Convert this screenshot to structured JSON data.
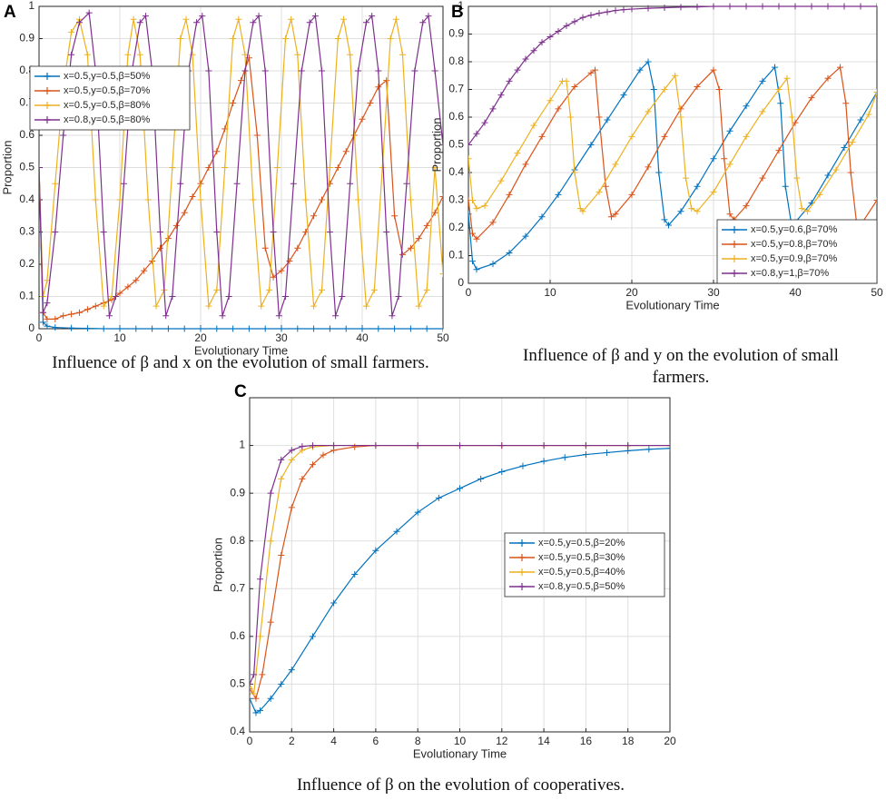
{
  "chart_data": [
    {
      "type": "line",
      "label": "A",
      "xlabel": "Evolutionary Time",
      "ylabel": "Proportion",
      "caption": "Influence of β and x on the evolution of small farmers.",
      "xlim": [
        0,
        50
      ],
      "xticks": [
        0,
        10,
        20,
        30,
        40,
        50
      ],
      "ylim": [
        0,
        1
      ],
      "yticks": [
        0,
        0.1,
        0.2,
        0.3,
        0.4,
        0.5,
        0.6,
        0.7,
        0.8,
        0.9,
        1
      ],
      "grid": true,
      "legend": "upper left",
      "series": [
        {
          "name": "x=0.5,y=0.5,β=50%",
          "color": "#0072BD",
          "x": [
            0,
            0.5,
            1,
            2,
            4,
            6,
            8,
            10,
            12,
            14,
            16,
            18,
            20,
            22,
            24,
            26,
            28,
            30,
            32,
            34,
            36,
            38,
            40,
            42,
            44,
            46,
            48,
            50
          ],
          "values": [
            0.5,
            0.02,
            0.008,
            0.004,
            0.002,
            0.001,
            0,
            0,
            0,
            0,
            0,
            0,
            0,
            0,
            0,
            0,
            0,
            0,
            0,
            0,
            0,
            0,
            0,
            0,
            0,
            0,
            0,
            0
          ]
        },
        {
          "name": "x=0.5,y=0.5,β=70%",
          "color": "#D95319",
          "x": [
            0,
            0.5,
            1,
            2,
            3,
            4,
            5,
            6,
            7,
            8,
            9,
            10,
            11,
            12,
            13,
            14,
            15,
            16,
            17,
            18,
            19,
            20,
            21,
            22,
            23,
            24,
            25,
            26,
            27,
            28,
            29,
            30,
            31,
            32,
            33,
            34,
            35,
            36,
            37,
            38,
            39,
            40,
            41,
            42,
            43,
            44,
            45,
            46,
            47,
            48,
            49,
            50
          ],
          "values": [
            0.5,
            0.05,
            0.03,
            0.03,
            0.04,
            0.045,
            0.05,
            0.06,
            0.07,
            0.08,
            0.09,
            0.11,
            0.13,
            0.15,
            0.18,
            0.21,
            0.25,
            0.28,
            0.32,
            0.36,
            0.41,
            0.45,
            0.5,
            0.55,
            0.62,
            0.7,
            0.77,
            0.84,
            0.6,
            0.25,
            0.16,
            0.18,
            0.21,
            0.25,
            0.3,
            0.35,
            0.4,
            0.45,
            0.5,
            0.55,
            0.6,
            0.65,
            0.7,
            0.75,
            0.77,
            0.35,
            0.23,
            0.25,
            0.28,
            0.32,
            0.36,
            0.41
          ]
        },
        {
          "name": "x=0.5,y=0.5,β=80%",
          "color": "#EDB120",
          "x": [
            0,
            0.5,
            1,
            2,
            3,
            4,
            5,
            6,
            7,
            8,
            9,
            10,
            11,
            11.7,
            12.5,
            13.5,
            14.5,
            15.5,
            16.5,
            17.5,
            18.2,
            19,
            20,
            21,
            22,
            23,
            24,
            24.7,
            25.5,
            26.5,
            27.5,
            28.5,
            29.5,
            30.5,
            31.2,
            32,
            33,
            34,
            35,
            36,
            37,
            37.7,
            38.5,
            39.5,
            40.5,
            41.5,
            42.5,
            43.5,
            44.2,
            45,
            46,
            47,
            48,
            49,
            50
          ],
          "values": [
            0.5,
            0.1,
            0.15,
            0.45,
            0.75,
            0.92,
            0.96,
            0.85,
            0.4,
            0.07,
            0.1,
            0.4,
            0.85,
            0.96,
            0.85,
            0.4,
            0.07,
            0.12,
            0.5,
            0.9,
            0.96,
            0.85,
            0.4,
            0.07,
            0.12,
            0.5,
            0.9,
            0.96,
            0.85,
            0.4,
            0.07,
            0.12,
            0.5,
            0.9,
            0.96,
            0.85,
            0.4,
            0.07,
            0.12,
            0.5,
            0.9,
            0.96,
            0.85,
            0.4,
            0.07,
            0.12,
            0.5,
            0.9,
            0.96,
            0.85,
            0.4,
            0.07,
            0.12,
            0.5,
            0.17
          ]
        },
        {
          "name": "x=0.8,y=0.5,β=80%",
          "color": "#7E2F8E",
          "x": [
            0,
            0.5,
            1,
            2,
            3,
            4,
            5,
            6.2,
            7,
            8,
            8.7,
            9.5,
            10.5,
            11.5,
            12.5,
            13.2,
            14,
            15,
            15.7,
            16.5,
            17.5,
            18.5,
            19.5,
            20.2,
            21,
            22,
            22.7,
            23.5,
            24.5,
            25.5,
            26.5,
            27.2,
            28,
            29,
            29.7,
            30.5,
            31.5,
            32.5,
            33.5,
            34.2,
            35,
            36,
            36.7,
            37.5,
            38.5,
            39.5,
            40.5,
            41.2,
            42,
            43,
            43.7,
            44.5,
            45.5,
            46.5,
            47.5,
            48.2,
            49,
            50
          ],
          "values": [
            0.5,
            0.05,
            0.08,
            0.3,
            0.6,
            0.85,
            0.95,
            0.98,
            0.8,
            0.3,
            0.04,
            0.1,
            0.45,
            0.8,
            0.95,
            0.97,
            0.8,
            0.3,
            0.04,
            0.1,
            0.45,
            0.8,
            0.95,
            0.97,
            0.8,
            0.3,
            0.04,
            0.1,
            0.45,
            0.8,
            0.95,
            0.97,
            0.8,
            0.3,
            0.04,
            0.1,
            0.45,
            0.8,
            0.95,
            0.97,
            0.8,
            0.3,
            0.04,
            0.1,
            0.45,
            0.8,
            0.95,
            0.97,
            0.8,
            0.3,
            0.04,
            0.1,
            0.45,
            0.8,
            0.95,
            0.97,
            0.8,
            0.57
          ]
        }
      ]
    },
    {
      "type": "line",
      "label": "B",
      "xlabel": "Evolutionary Time",
      "ylabel": "Proportion",
      "caption": "Influence of β and y on the evolution of small farmers.",
      "xlim": [
        0,
        50
      ],
      "xticks": [
        0,
        10,
        20,
        30,
        40,
        50
      ],
      "ylim": [
        0,
        1
      ],
      "yticks": [
        0,
        0.1,
        0.2,
        0.3,
        0.4,
        0.5,
        0.6,
        0.7,
        0.8,
        0.9,
        1
      ],
      "grid": true,
      "legend": "lower right",
      "series": [
        {
          "name": "x=0.5,y=0.6,β=70%",
          "color": "#0072BD",
          "x": [
            0,
            0.5,
            1,
            3,
            5,
            7,
            9,
            11,
            13,
            15,
            17,
            19,
            21,
            22,
            22.7,
            23.3,
            24,
            24.5,
            26,
            28,
            30,
            32,
            34,
            36,
            37.5,
            38.2,
            38.8,
            39.5,
            40,
            42,
            44,
            46,
            48,
            50
          ],
          "values": [
            0.25,
            0.08,
            0.05,
            0.07,
            0.11,
            0.17,
            0.24,
            0.32,
            0.41,
            0.5,
            0.59,
            0.68,
            0.77,
            0.8,
            0.7,
            0.4,
            0.23,
            0.21,
            0.26,
            0.35,
            0.45,
            0.55,
            0.64,
            0.73,
            0.78,
            0.65,
            0.35,
            0.22,
            0.22,
            0.29,
            0.39,
            0.49,
            0.59,
            0.69
          ]
        },
        {
          "name": "x=0.5,y=0.8,β=70%",
          "color": "#D95319",
          "x": [
            0,
            0.5,
            1,
            3,
            5,
            7,
            9,
            11,
            13,
            15,
            15.5,
            16,
            16.8,
            17.5,
            18,
            20,
            22,
            24,
            26,
            28,
            30,
            30.7,
            31.3,
            32,
            32.5,
            34,
            36,
            38,
            40,
            42,
            44,
            45.5,
            46.2,
            46.8,
            47.5,
            48,
            50
          ],
          "values": [
            0.3,
            0.18,
            0.16,
            0.22,
            0.32,
            0.43,
            0.53,
            0.63,
            0.71,
            0.76,
            0.77,
            0.6,
            0.35,
            0.24,
            0.25,
            0.32,
            0.42,
            0.53,
            0.63,
            0.71,
            0.77,
            0.7,
            0.45,
            0.25,
            0.23,
            0.28,
            0.38,
            0.48,
            0.58,
            0.67,
            0.74,
            0.78,
            0.65,
            0.4,
            0.22,
            0.21,
            0.3
          ]
        },
        {
          "name": "x=0.5,y=0.9,β=70%",
          "color": "#EDB120",
          "x": [
            0,
            0.5,
            1,
            2,
            4,
            6,
            8,
            10,
            11.5,
            12,
            12.5,
            13,
            13.7,
            14,
            16,
            18,
            20,
            22,
            24,
            25.3,
            26,
            26.6,
            27.3,
            28,
            30,
            32,
            34,
            36,
            38,
            39,
            39.6,
            40.2,
            40.8,
            41.5,
            43,
            45,
            47,
            49,
            50
          ],
          "values": [
            0.45,
            0.3,
            0.27,
            0.28,
            0.37,
            0.47,
            0.57,
            0.66,
            0.73,
            0.73,
            0.6,
            0.4,
            0.27,
            0.26,
            0.33,
            0.43,
            0.53,
            0.62,
            0.7,
            0.75,
            0.6,
            0.38,
            0.27,
            0.26,
            0.33,
            0.43,
            0.53,
            0.62,
            0.7,
            0.74,
            0.6,
            0.38,
            0.27,
            0.26,
            0.32,
            0.41,
            0.51,
            0.61,
            0.69
          ]
        },
        {
          "name": "x=0.8,y=1,β=70%",
          "color": "#7E2F8E",
          "x": [
            0,
            1,
            2,
            3,
            4,
            5,
            6,
            7,
            8,
            9,
            10,
            11,
            12,
            13,
            14,
            15,
            16,
            17,
            18,
            19,
            20,
            22,
            24,
            26,
            28,
            30,
            32,
            34,
            36,
            38,
            40,
            42,
            44,
            46,
            48,
            50
          ],
          "values": [
            0.5,
            0.54,
            0.58,
            0.63,
            0.68,
            0.73,
            0.77,
            0.81,
            0.84,
            0.87,
            0.89,
            0.91,
            0.93,
            0.945,
            0.96,
            0.968,
            0.975,
            0.98,
            0.985,
            0.988,
            0.99,
            0.993,
            0.995,
            0.997,
            0.998,
            1,
            1,
            1,
            1,
            1,
            1,
            1,
            1,
            1,
            1,
            1
          ]
        }
      ]
    },
    {
      "type": "line",
      "label": "C",
      "xlabel": "Evolutionary Time",
      "ylabel": "Proportion",
      "caption": "Influence of β on the evolution of cooperatives.",
      "xlim": [
        0,
        20
      ],
      "xticks": [
        0,
        2,
        4,
        6,
        8,
        10,
        12,
        14,
        16,
        18,
        20
      ],
      "ylim": [
        0.4,
        1.1
      ],
      "yticks": [
        0.4,
        0.5,
        0.6,
        0.7,
        0.8,
        0.9,
        1
      ],
      "grid": true,
      "legend": "center right",
      "series": [
        {
          "name": "x=0.5,y=0.5,β=20%",
          "color": "#0072BD",
          "x": [
            0,
            0.3,
            0.5,
            1,
            1.5,
            2,
            3,
            4,
            5,
            6,
            7,
            8,
            9,
            10,
            11,
            12,
            13,
            14,
            15,
            16,
            17,
            18,
            19,
            20
          ],
          "values": [
            0.47,
            0.44,
            0.445,
            0.47,
            0.5,
            0.53,
            0.6,
            0.67,
            0.73,
            0.78,
            0.82,
            0.86,
            0.89,
            0.91,
            0.93,
            0.945,
            0.957,
            0.967,
            0.975,
            0.981,
            0.985,
            0.989,
            0.992,
            0.994
          ]
        },
        {
          "name": "x=0.5,y=0.5,β=30%",
          "color": "#D95319",
          "x": [
            0,
            0.3,
            0.6,
            1,
            1.5,
            2,
            2.5,
            3,
            3.5,
            4,
            5,
            6,
            8,
            10,
            12,
            14,
            16,
            18,
            20
          ],
          "values": [
            0.49,
            0.47,
            0.52,
            0.63,
            0.77,
            0.87,
            0.93,
            0.96,
            0.98,
            0.99,
            0.997,
            1,
            1,
            1,
            1,
            1,
            1,
            1,
            1
          ]
        },
        {
          "name": "x=0.5,y=0.5,β=40%",
          "color": "#EDB120",
          "x": [
            0,
            0.2,
            0.5,
            1,
            1.5,
            2,
            2.5,
            3,
            4,
            6,
            8,
            10,
            12,
            14,
            16,
            18,
            20
          ],
          "values": [
            0.5,
            0.48,
            0.6,
            0.8,
            0.93,
            0.97,
            0.99,
            0.997,
            1,
            1,
            1,
            1,
            1,
            1,
            1,
            1,
            1
          ]
        },
        {
          "name": "x=0.8,y=0.5,β=50%",
          "color": "#7E2F8E",
          "x": [
            0,
            0.2,
            0.5,
            1,
            1.5,
            2,
            2.5,
            3,
            4,
            6,
            8,
            10,
            12,
            14,
            16,
            18,
            20
          ],
          "values": [
            0.5,
            0.52,
            0.72,
            0.9,
            0.97,
            0.99,
            0.998,
            1,
            1,
            1,
            1,
            1,
            1,
            1,
            1,
            1,
            1
          ]
        }
      ]
    }
  ]
}
